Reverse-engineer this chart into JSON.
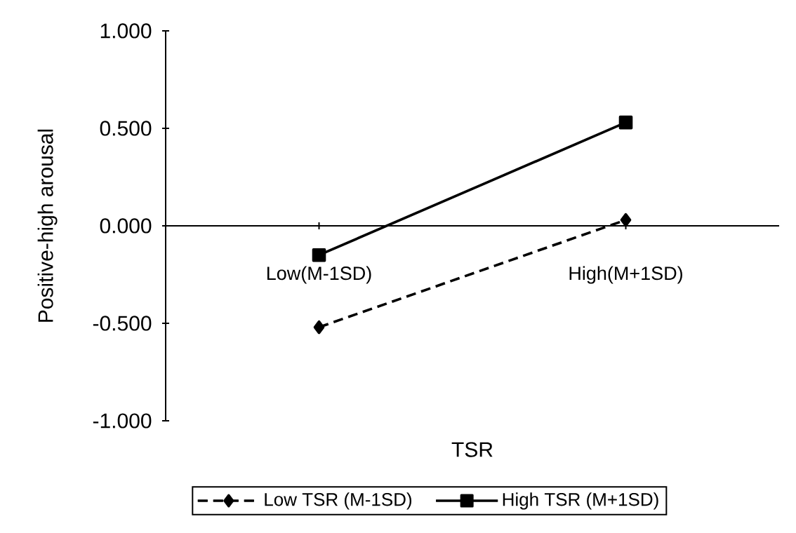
{
  "chart_data": {
    "type": "line",
    "xlabel": "TSR",
    "ylabel": "Positive-high arousal",
    "categories": [
      "Low(M-1SD)",
      "High(M+1SD)"
    ],
    "series": [
      {
        "name": "Low TSR (M-1SD)",
        "color": "#000000",
        "values": [
          -0.52,
          0.03
        ],
        "marker": "diamond",
        "line_style": "dashed"
      },
      {
        "name": "High TSR (M+1SD)",
        "color": "#000000",
        "values": [
          -0.15,
          0.53
        ],
        "marker": "square",
        "line_style": "solid"
      }
    ],
    "ylim": [
      -1,
      1
    ],
    "yticks": [
      {
        "value": -1,
        "label": "-1.000"
      },
      {
        "value": -0.5,
        "label": "-0.500"
      },
      {
        "value": 0,
        "label": "0.000"
      },
      {
        "value": 0.5,
        "label": "0.500"
      },
      {
        "value": 1,
        "label": "1.000"
      }
    ],
    "grid": false,
    "legend": "bottom"
  }
}
